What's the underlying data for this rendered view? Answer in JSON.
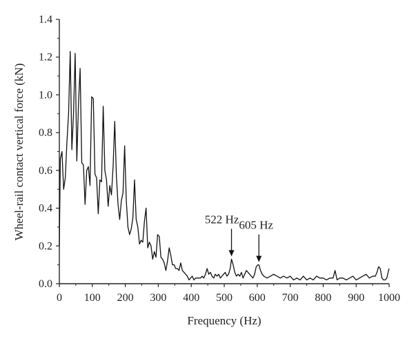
{
  "chart_data": {
    "type": "line",
    "title": "",
    "xlabel": "Frequency (Hz)",
    "ylabel": "Wheel-rail contact vertical force (kN)",
    "xlim": [
      0,
      1000
    ],
    "ylim": [
      0,
      1.4
    ],
    "xticks": [
      "0",
      "100",
      "200",
      "300",
      "400",
      "500",
      "600",
      "700",
      "800",
      "900",
      "1000"
    ],
    "yticks": [
      "0.0",
      "0.2",
      "0.4",
      "0.6",
      "0.8",
      "1.0",
      "1.2",
      "1.4"
    ],
    "grid": false,
    "series": [
      {
        "x": [
          0,
          3,
          8,
          13,
          18,
          23,
          28,
          33,
          38,
          43,
          48,
          53,
          58,
          63,
          68,
          73,
          78,
          83,
          88,
          93,
          98,
          103,
          108,
          113,
          118,
          123,
          128,
          133,
          138,
          143,
          148,
          153,
          158,
          163,
          168,
          173,
          178,
          183,
          188,
          193,
          198,
          203,
          208,
          213,
          218,
          223,
          228,
          233,
          238,
          243,
          248,
          253,
          258,
          263,
          268,
          273,
          278,
          283,
          288,
          293,
          298,
          303,
          308,
          313,
          318,
          323,
          328,
          333,
          338,
          343,
          348,
          353,
          358,
          363,
          368,
          373,
          378,
          383,
          388,
          393,
          398,
          403,
          408,
          413,
          418,
          423,
          428,
          433,
          438,
          443,
          448,
          453,
          458,
          463,
          468,
          473,
          478,
          483,
          488,
          493,
          498,
          503,
          508,
          513,
          518,
          522,
          527,
          532,
          537,
          542,
          547,
          552,
          557,
          562,
          567,
          572,
          577,
          582,
          587,
          592,
          597,
          602,
          605,
          610,
          615,
          620,
          630,
          640,
          650,
          660,
          670,
          680,
          690,
          700,
          710,
          720,
          730,
          740,
          750,
          760,
          770,
          780,
          790,
          800,
          810,
          820,
          830,
          836,
          842,
          850,
          860,
          870,
          880,
          890,
          900,
          910,
          920,
          930,
          940,
          950,
          958,
          963,
          968,
          973,
          978,
          983,
          988,
          993,
          998,
          1000
        ],
        "values": [
          0.2,
          0.66,
          0.7,
          0.5,
          0.56,
          0.75,
          0.9,
          1.23,
          0.71,
          0.9,
          1.22,
          0.65,
          0.95,
          1.14,
          0.64,
          0.63,
          0.42,
          0.6,
          0.62,
          0.52,
          0.99,
          0.98,
          0.58,
          0.56,
          0.37,
          0.55,
          0.54,
          0.94,
          0.6,
          0.55,
          0.41,
          0.52,
          0.47,
          0.62,
          0.86,
          0.57,
          0.42,
          0.34,
          0.44,
          0.48,
          0.73,
          0.44,
          0.3,
          0.26,
          0.29,
          0.35,
          0.55,
          0.34,
          0.3,
          0.21,
          0.23,
          0.22,
          0.33,
          0.4,
          0.19,
          0.22,
          0.2,
          0.13,
          0.17,
          0.14,
          0.26,
          0.25,
          0.14,
          0.13,
          0.11,
          0.07,
          0.12,
          0.19,
          0.15,
          0.1,
          0.1,
          0.08,
          0.08,
          0.07,
          0.11,
          0.07,
          0.06,
          0.05,
          0.04,
          0.02,
          0.03,
          0.04,
          0.02,
          0.03,
          0.03,
          0.03,
          0.03,
          0.04,
          0.03,
          0.05,
          0.08,
          0.05,
          0.06,
          0.04,
          0.03,
          0.05,
          0.04,
          0.05,
          0.03,
          0.04,
          0.05,
          0.06,
          0.04,
          0.05,
          0.08,
          0.13,
          0.1,
          0.06,
          0.04,
          0.05,
          0.04,
          0.06,
          0.03,
          0.05,
          0.07,
          0.06,
          0.05,
          0.04,
          0.03,
          0.05,
          0.09,
          0.1,
          0.1,
          0.07,
          0.05,
          0.04,
          0.03,
          0.04,
          0.05,
          0.04,
          0.03,
          0.04,
          0.03,
          0.04,
          0.02,
          0.03,
          0.02,
          0.04,
          0.02,
          0.03,
          0.02,
          0.04,
          0.03,
          0.03,
          0.02,
          0.03,
          0.03,
          0.07,
          0.02,
          0.03,
          0.03,
          0.02,
          0.03,
          0.04,
          0.02,
          0.03,
          0.04,
          0.05,
          0.03,
          0.04,
          0.04,
          0.06,
          0.09,
          0.08,
          0.03,
          0.02,
          0.02,
          0.03,
          0.07,
          0.08
        ]
      }
    ],
    "annotations": [
      {
        "text": "522 Hz",
        "x": 522,
        "y": 0.13
      },
      {
        "text": "605 Hz",
        "x": 605,
        "y": 0.1
      }
    ]
  }
}
